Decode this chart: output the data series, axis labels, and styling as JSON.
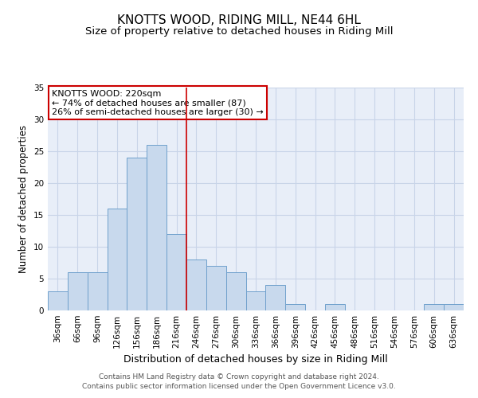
{
  "title": "KNOTTS WOOD, RIDING MILL, NE44 6HL",
  "subtitle": "Size of property relative to detached houses in Riding Mill",
  "xlabel": "Distribution of detached houses by size in Riding Mill",
  "ylabel": "Number of detached properties",
  "footer_line1": "Contains HM Land Registry data © Crown copyright and database right 2024.",
  "footer_line2": "Contains public sector information licensed under the Open Government Licence v3.0.",
  "categories": [
    "36sqm",
    "66sqm",
    "96sqm",
    "126sqm",
    "156sqm",
    "186sqm",
    "216sqm",
    "246sqm",
    "276sqm",
    "306sqm",
    "336sqm",
    "366sqm",
    "396sqm",
    "426sqm",
    "456sqm",
    "486sqm",
    "516sqm",
    "546sqm",
    "576sqm",
    "606sqm",
    "636sqm"
  ],
  "values": [
    3,
    6,
    6,
    16,
    24,
    26,
    12,
    8,
    7,
    6,
    3,
    4,
    1,
    0,
    1,
    0,
    0,
    0,
    0,
    1,
    1
  ],
  "bar_color": "#c8d9ed",
  "bar_edge_color": "#6fa0cc",
  "bar_width": 1.0,
  "vline_x": 6.5,
  "vline_color": "#cc0000",
  "ylim": [
    0,
    35
  ],
  "yticks": [
    0,
    5,
    10,
    15,
    20,
    25,
    30,
    35
  ],
  "annotation_text": "KNOTTS WOOD: 220sqm\n← 74% of detached houses are smaller (87)\n26% of semi-detached houses are larger (30) →",
  "annotation_box_facecolor": "#ffffff",
  "annotation_box_edgecolor": "#cc0000",
  "grid_color": "#c8d4e8",
  "background_color": "#e8eef8",
  "title_fontsize": 11,
  "subtitle_fontsize": 9.5,
  "xlabel_fontsize": 9,
  "ylabel_fontsize": 8.5,
  "tick_fontsize": 7.5,
  "footer_fontsize": 6.5,
  "annotation_fontsize": 8
}
